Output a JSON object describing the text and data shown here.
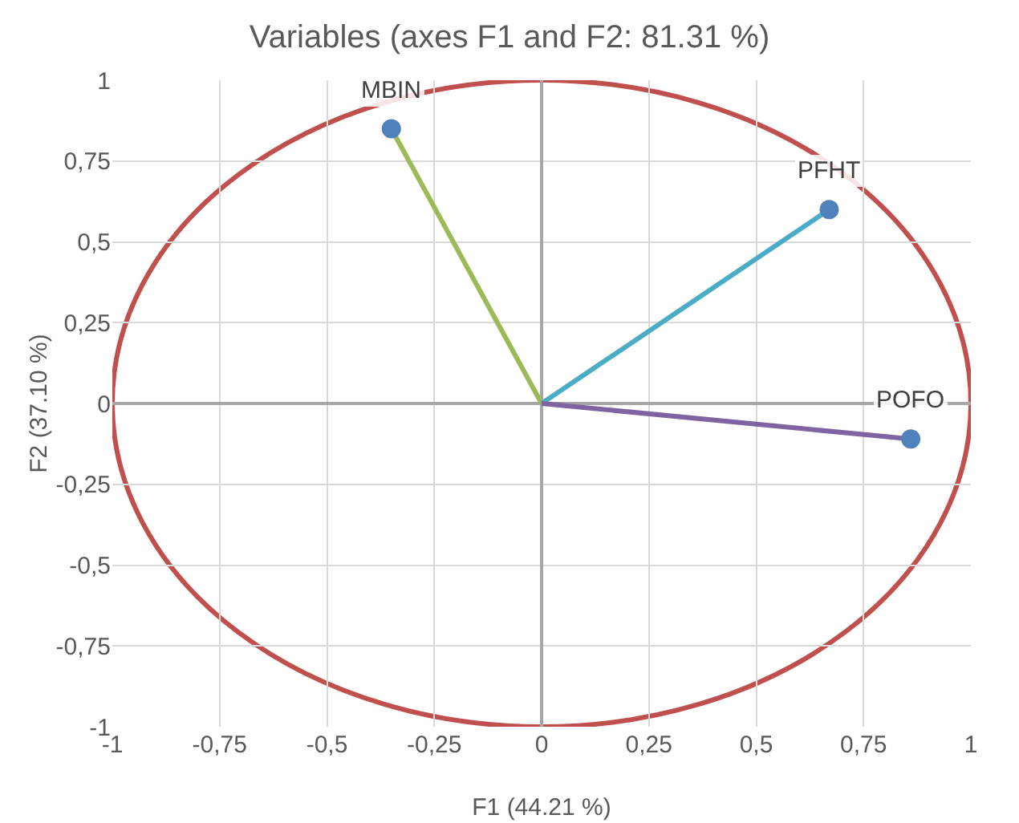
{
  "chart_data": {
    "type": "scatter",
    "title": "Variables (axes F1 and F2: 81.31 %)",
    "xlabel": "F1 (44.21 %)",
    "ylabel": "F2 (37.10 %)",
    "series": [
      {
        "type": "line",
        "marker": "none",
        "color": "#9bbb59",
        "x": [
          0,
          -0.35
        ],
        "values": [
          0,
          0.85
        ]
      },
      {
        "type": "line",
        "marker": "none",
        "color": "#4bacc6",
        "x": [
          0,
          0.67
        ],
        "values": [
          0,
          0.6
        ]
      },
      {
        "type": "line",
        "marker": "none",
        "color": "#8064a2",
        "x": [
          0,
          0.86
        ],
        "values": [
          0,
          -0.11
        ]
      },
      {
        "color": "#4f81bd",
        "x": [
          -0.35,
          0.67,
          0.86
        ],
        "values": [
          0.85,
          0.6,
          -0.11
        ]
      }
    ],
    "annotations": [
      {
        "text": "MBIN",
        "x": -0.35,
        "y": 0.85
      },
      {
        "text": "PFHT",
        "x": 0.67,
        "y": 0.6
      },
      {
        "text": "POFO",
        "x": 0.86,
        "y": -0.11
      }
    ],
    "xlim": [
      -1,
      1
    ],
    "ylim": [
      -1,
      1
    ],
    "xticks": [
      -1,
      {
        "value": -0.75,
        "label": "-0,75"
      },
      {
        "value": -0.5,
        "label": "-0,5"
      },
      {
        "value": -0.25,
        "label": "-0,25"
      },
      0,
      {
        "value": 0.25,
        "label": "0,25"
      },
      {
        "value": 0.5,
        "label": "0,5"
      },
      {
        "value": 0.75,
        "label": "0,75"
      },
      1
    ],
    "yticks": [
      -1,
      {
        "value": -0.75,
        "label": "-0,75"
      },
      {
        "value": -0.5,
        "label": "-0,5"
      },
      {
        "value": -0.25,
        "label": "-0,25"
      },
      0,
      {
        "value": 0.25,
        "label": "0,25"
      },
      {
        "value": 0.5,
        "label": "0,5"
      },
      {
        "value": 0.75,
        "label": "0,75"
      },
      1
    ],
    "grid": true,
    "marker": "circle"
  }
}
